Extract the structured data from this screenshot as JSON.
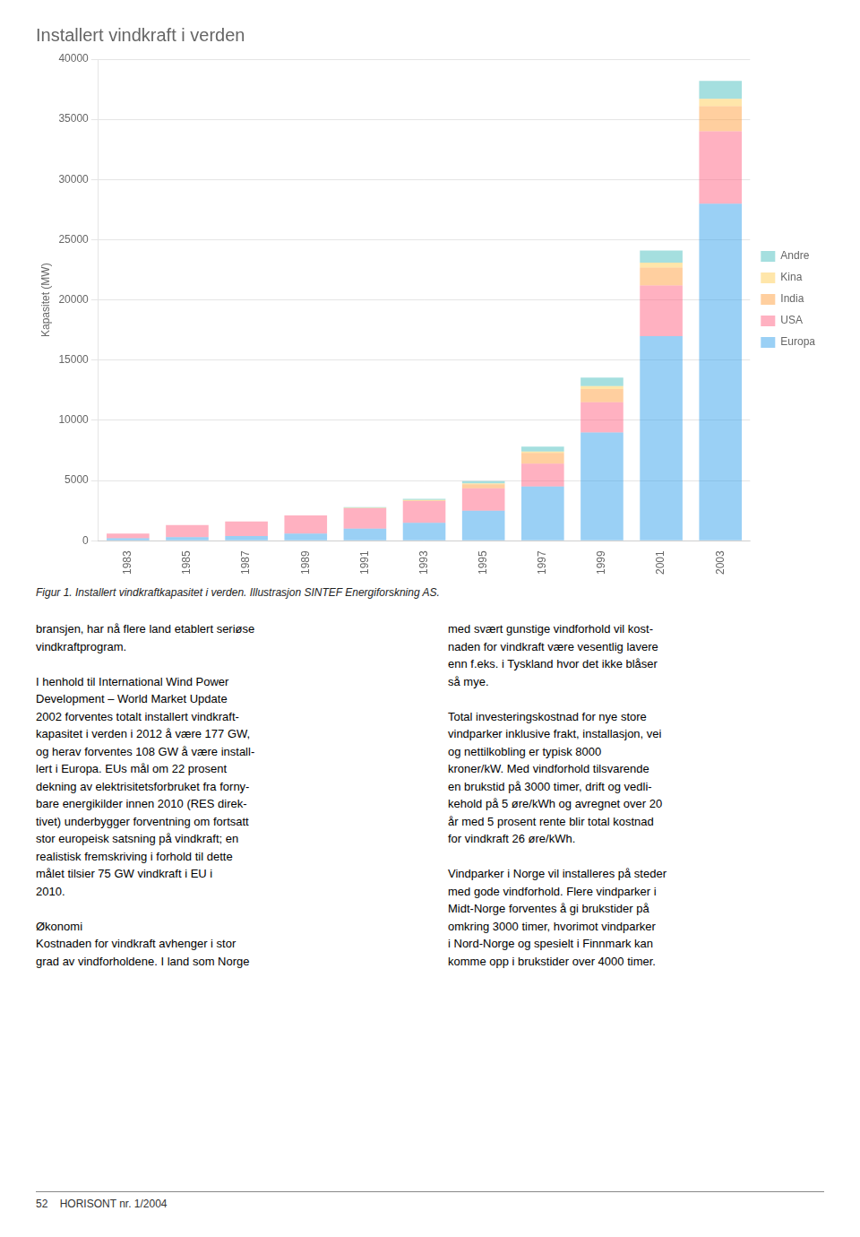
{
  "chart_data": {
    "type": "bar",
    "title": "Installert vindkraft i verden",
    "y_label": "Kapasitet (MW)",
    "categories": [
      1983,
      1985,
      1987,
      1989,
      1991,
      1993,
      1995,
      1997,
      1999,
      2001,
      2003
    ],
    "series": [
      {
        "name": "Europa",
        "values": [
          200,
          300,
          400,
          600,
          1000,
          1500,
          2500,
          4500,
          9000,
          17000,
          28000
        ]
      },
      {
        "name": "USA",
        "values": [
          400,
          1000,
          1200,
          1500,
          1700,
          1800,
          1850,
          1900,
          2500,
          4200,
          6000
        ]
      },
      {
        "name": "India",
        "values": [
          0,
          0,
          0,
          0,
          30,
          60,
          350,
          900,
          1100,
          1500,
          2100
        ]
      },
      {
        "name": "Kina",
        "values": [
          0,
          0,
          0,
          0,
          10,
          30,
          60,
          120,
          250,
          400,
          600
        ]
      },
      {
        "name": "Andre",
        "values": [
          0,
          0,
          0,
          0,
          50,
          100,
          200,
          400,
          700,
          1000,
          1500
        ]
      }
    ],
    "stacked": true,
    "ylim": [
      0,
      40000
    ],
    "yticks": [
      0,
      5000,
      10000,
      15000,
      20000,
      25000,
      30000,
      35000,
      40000
    ],
    "grid": true,
    "legend": "right",
    "caption": "Figur 1.  Installert vindkraftkapasitet i verden.  Illustrasjon SINTEF Energiforskning AS.",
    "body_text_left": "bransjen, har nå flere land etablert seriøse\nvindkraftprogram.\n\nI henhold til International Wind Power\nDevelopment – World Market Update\n2002 forventes totalt installert vindkraft-\nkapasitet i verden i 2012 å være 177 GW,\nog herav forventes 108 GW å være install-\nlert i Europa. EUs mål om 22 prosent\ndekning av elektrisitetsforbruket fra forny-\nbare energikilder innen 2010 (RES direk-\ntivet) underbygger forventning om fortsatt\nstor europeisk satsning på vindkraft; en\nrealistisk fremskriving i forhold til dette\nmålet tilsier 75 GW vindkraft i EU i\n2010.\n\nØkonomi\nKostnaden for vindkraft avhenger i stor\ngrad av vindforholdene. I land som Norge",
    "body_text_right": "med svært gunstige vindforhold vil kost-\nnaden for vindkraft være vesentlig lavere\nenn f.eks. i Tyskland hvor det ikke blåser\nså mye.\n\nTotal investeringskostnad for nye store\nvindparker inklusive frakt, installasjon, vei\nog nettilkobling er typisk 8000\nkroner/kW. Med vindforhold tilsvarende\nen brukstid på 3000 timer, drift og vedli-\nkehold på 5 øre/kWh og avregnet over 20\når med 5 prosent rente blir total kostnad\nfor vindkraft 26 øre/kWh.\n\nVindparker i Norge vil installeres på steder\nmed gode vindforhold. Flere vindparker i\nMidt-Norge forventes å gi brukstider på\nomkring 3000 timer, hvorimot vindparker\ni Nord-Norge og spesielt i Finnmark kan\nkomme opp i brukstider over 4000 timer.",
    "footer": "52    HORISONT nr. 1/2004"
  }
}
